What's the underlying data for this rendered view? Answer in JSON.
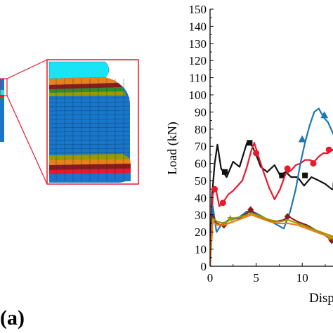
{
  "panel_label": "(a)",
  "colors": {
    "black": "#111111",
    "red": "#e8192c",
    "blue": "#1f77b4",
    "brown": "#8b1a1a",
    "olive": "#9a9a00",
    "orange": "#e8811b",
    "darkred": "#b22222",
    "model_blue": "#1a76c9",
    "model_cyan": "#19e4f5"
  },
  "chart_data": {
    "type": "line",
    "xlabel": "Disp",
    "ylabel": "Load (kN)",
    "ylim": [
      0,
      150
    ],
    "yticks": [
      0,
      10,
      20,
      30,
      40,
      50,
      60,
      70,
      80,
      90,
      100,
      110,
      120,
      130,
      140,
      150
    ],
    "xlim": [
      0,
      15
    ],
    "xticks": [
      0,
      5,
      10
    ],
    "grid": false,
    "series": [
      {
        "color": "#111111",
        "marker": "square",
        "x": [
          0,
          0.2,
          0.5,
          0.8,
          1.2,
          1.8,
          2.5,
          3.2,
          4.0,
          4.5,
          5.0,
          5.5,
          6.2,
          7.0,
          7.6,
          8.2,
          8.8,
          9.5,
          10.2,
          11.0,
          11.8,
          12.5,
          13.2,
          14.0,
          15.0
        ],
        "y": [
          0,
          40,
          60,
          71,
          57,
          52,
          61,
          58,
          72,
          71,
          65,
          58,
          55,
          59,
          53,
          55,
          52,
          52,
          47,
          52,
          50,
          48,
          45,
          44,
          44
        ],
        "markers_x": [
          1.6,
          4.3,
          7.8,
          10.3,
          13.6
        ],
        "markers_y": [
          55,
          72,
          53,
          53,
          47
        ]
      },
      {
        "color": "#e8192c",
        "marker": "circle",
        "x": [
          0,
          0.3,
          0.6,
          1.0,
          1.5,
          2.0,
          2.5,
          3.0,
          3.5,
          4.0,
          4.5,
          4.8,
          5.2,
          5.8,
          6.4,
          7.0,
          7.6,
          8.2,
          8.8,
          9.3,
          9.8,
          10.3,
          10.8,
          11.3,
          11.8,
          12.3,
          12.8,
          13.3,
          14.0,
          15.0
        ],
        "y": [
          0,
          42,
          46,
          35,
          38,
          42,
          44,
          47,
          50,
          58,
          68,
          72,
          65,
          55,
          46,
          39,
          45,
          54,
          56,
          59,
          60,
          62,
          62,
          61,
          64,
          66,
          66,
          68,
          65,
          62
        ],
        "markers_x": [
          0.5,
          1.4,
          5.0,
          8.4,
          11.2,
          12.9
        ],
        "markers_y": [
          45,
          37,
          66,
          57,
          60,
          68
        ]
      },
      {
        "color": "#1f77b4",
        "marker": "triangle",
        "x": [
          0,
          0.3,
          0.7,
          1.2,
          2.0,
          3.0,
          4.0,
          5.0,
          6.0,
          7.0,
          8.0,
          8.7,
          9.3,
          9.8,
          10.3,
          10.8,
          11.3,
          11.8,
          12.3,
          12.8,
          13.3,
          14.0,
          15.0
        ],
        "y": [
          0,
          35,
          20,
          24,
          27,
          28,
          32,
          31,
          28,
          25,
          22,
          32,
          45,
          60,
          72,
          82,
          90,
          92,
          87,
          84,
          78,
          70,
          65
        ],
        "markers_x": [
          10.0,
          12.4
        ],
        "markers_y": [
          74,
          88
        ]
      },
      {
        "color": "#8b1a1a",
        "marker": "diamond",
        "x": [
          0,
          0.3,
          0.7,
          1.2,
          2.0,
          3.0,
          4.0,
          4.5,
          5.0,
          6.0,
          7.0,
          8.0,
          8.5,
          9.5,
          10.5,
          11.5,
          12.5,
          13.5,
          14.5,
          15.0
        ],
        "y": [
          0,
          30,
          25,
          24,
          25,
          27,
          31,
          33,
          30,
          27,
          26,
          27,
          29,
          26,
          24,
          21,
          18,
          14,
          13,
          13
        ],
        "markers_x": [
          1.5,
          4.4,
          8.4,
          13.2
        ],
        "markers_y": [
          24,
          33,
          29,
          15
        ]
      },
      {
        "color": "#9a9a00",
        "marker": "star",
        "x": [
          0,
          0.3,
          0.8,
          1.5,
          2.5,
          3.5,
          4.5,
          5.5,
          6.5,
          7.5,
          8.5,
          9.5,
          10.5,
          11.5,
          12.5,
          13.5,
          14.5,
          15.0
        ],
        "y": [
          0,
          28,
          26,
          25,
          28,
          29,
          31,
          29,
          27,
          26,
          27,
          25,
          23,
          21,
          19,
          17,
          15,
          15
        ],
        "markers_x": [
          2.2,
          13.0
        ],
        "markers_y": [
          28,
          17
        ]
      },
      {
        "color": "#e8811b",
        "marker": "none",
        "x": [
          0,
          0.3,
          0.8,
          1.5,
          2.5,
          3.5,
          4.5,
          5.5,
          6.5,
          7.5,
          8.5,
          9.5,
          10.5,
          11.5,
          12.5,
          13.5,
          14.5,
          15.0
        ],
        "y": [
          0,
          26,
          24,
          24,
          26,
          28,
          30,
          28,
          26,
          25,
          25,
          24,
          22,
          20,
          18,
          16,
          14,
          14
        ],
        "markers_x": [],
        "markers_y": []
      }
    ]
  }
}
